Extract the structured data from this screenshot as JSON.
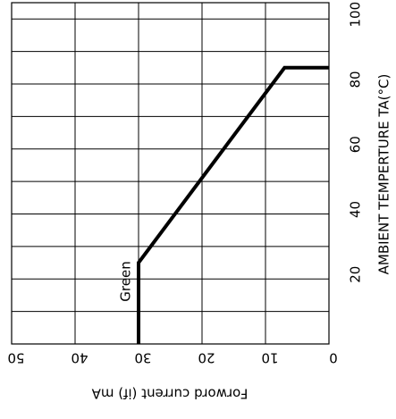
{
  "chart_data": {
    "type": "line",
    "xlabel": "AMBIENT TEMPERTURE TA(°C)",
    "ylabel": "Forword current (if) mA",
    "x": [
      0,
      25,
      85,
      85
    ],
    "series": [
      {
        "name": "Green",
        "color": "#000000",
        "values": [
          30,
          30,
          7,
          0
        ]
      }
    ],
    "xlim": [
      0,
      105
    ],
    "xticks": [
      20,
      40,
      60,
      80,
      100
    ],
    "x_minor_ticks": [
      10,
      30,
      50,
      70,
      90
    ],
    "ylim": [
      0,
      50
    ],
    "yticks": [
      0,
      10,
      20,
      30,
      40,
      50
    ],
    "grid": true
  }
}
